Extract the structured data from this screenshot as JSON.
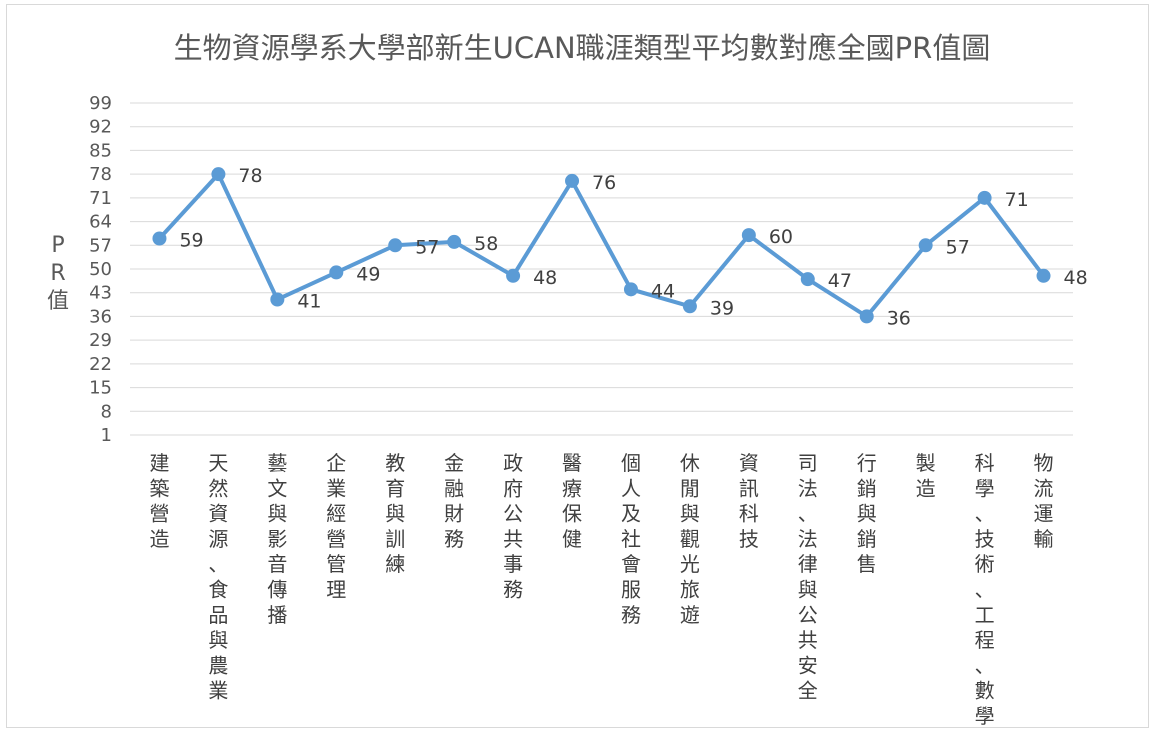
{
  "chart_data": {
    "type": "line",
    "title": "生物資源學系大學部新生UCAN職涯類型平均數對應全國PR值圖",
    "ylabel": "PR值",
    "xlabel": "",
    "yticks": [
      99,
      92,
      85,
      78,
      71,
      64,
      57,
      50,
      43,
      36,
      29,
      22,
      15,
      8,
      1
    ],
    "ylim": [
      1,
      99
    ],
    "grid": true,
    "legend": "none",
    "categories": [
      "建築營造",
      "天然資源、食品與農業",
      "藝文與影音傳播",
      "企業經營管理",
      "教育與訓練",
      "金融財務",
      "政府公共事務",
      "醫療保健",
      "個人及社會服務",
      "休閒與觀光旅遊",
      "資訊科技",
      "司法、法律與公共安全",
      "行銷與銷售",
      "製造",
      "科學、技術、工程、數學",
      "物流運輸"
    ],
    "series": [
      {
        "values": [
          59,
          78,
          41,
          49,
          57,
          58,
          48,
          76,
          44,
          39,
          60,
          47,
          36,
          57,
          71,
          48
        ]
      }
    ],
    "colors": {
      "line": "#5b9bd5",
      "grid": "#d9d9d9",
      "text": "#595959"
    }
  }
}
